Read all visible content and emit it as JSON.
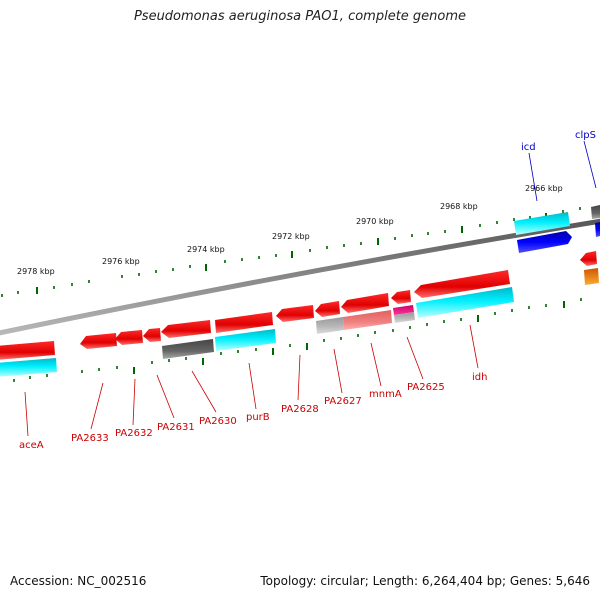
{
  "title": "Pseudomonas aeruginosa PAO1, complete genome",
  "footer": {
    "accession": "Accession: NC_002516",
    "summary": "Topology: circular; Length: 6,264,404 bp; Genes: 5,646"
  },
  "ticks": [
    {
      "label": "2978 kbp"
    },
    {
      "label": "2976 kbp"
    },
    {
      "label": "2974 kbp"
    },
    {
      "label": "2972 kbp"
    },
    {
      "label": "2970 kbp"
    },
    {
      "label": "2968 kbp"
    },
    {
      "label": "2966 kbp"
    }
  ],
  "genes": [
    {
      "label": "aceA",
      "color": "#cc0000"
    },
    {
      "label": "PA2633",
      "color": "#cc0000"
    },
    {
      "label": "PA2632",
      "color": "#cc0000"
    },
    {
      "label": "PA2631",
      "color": "#cc0000"
    },
    {
      "label": "PA2630",
      "color": "#cc0000"
    },
    {
      "label": "purB",
      "color": "#cc0000"
    },
    {
      "label": "PA2628",
      "color": "#cc0000"
    },
    {
      "label": "PA2627",
      "color": "#cc0000"
    },
    {
      "label": "mnmA",
      "color": "#cc0000"
    },
    {
      "label": "PA2625",
      "color": "#cc0000"
    },
    {
      "label": "idh",
      "color": "#cc0000"
    },
    {
      "label": "icd",
      "color": "#0000cc"
    },
    {
      "label": "clpS",
      "color": "#0000cc"
    }
  ],
  "colors": {
    "gene_red": "#ee0000",
    "cog_cyan": "#00e5ee",
    "cog_blue": "#0000ee",
    "cog_gray": "#555555",
    "cog_salmon": "#f08080",
    "cog_magenta": "#ee1493",
    "cog_orange": "#ee8800",
    "tick_green": "#006600"
  }
}
